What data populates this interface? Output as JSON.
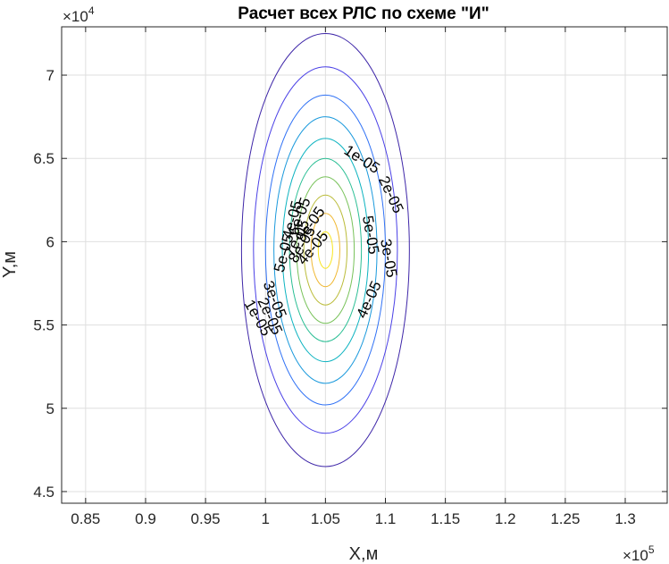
{
  "chart_data": {
    "type": "contour",
    "title": "Расчет всех РЛС по схеме \"И\"",
    "xlabel": "X,м",
    "ylabel": "Y,м",
    "xlim": [
      83000,
      133500
    ],
    "ylim": [
      44300,
      72900
    ],
    "x_ticks": [
      85000,
      90000,
      95000,
      100000,
      105000,
      110000,
      115000,
      120000,
      125000,
      130000
    ],
    "x_tick_labels": [
      "0.85",
      "0.9",
      "0.95",
      "1",
      "1.05",
      "1.1",
      "1.15",
      "1.2",
      "1.25",
      "1.3"
    ],
    "y_ticks": [
      45000,
      50000,
      55000,
      60000,
      65000,
      70000
    ],
    "y_tick_labels": [
      "4.5",
      "5",
      "5.5",
      "6",
      "6.5",
      "7"
    ],
    "x_exponent": {
      "base": "×10",
      "power": "5"
    },
    "y_exponent": {
      "base": "×10",
      "power": "4"
    },
    "grid": true,
    "peak": {
      "x": 105000,
      "y": 59500
    },
    "contours": [
      {
        "level": 1e-05,
        "rx": 7000,
        "ry": 13000,
        "color": "#3e26a8"
      },
      {
        "level": 2e-05,
        "rx": 6000,
        "ry": 11000,
        "color": "#4a40e6"
      },
      {
        "level": 3e-05,
        "rx": 5000,
        "ry": 9300,
        "color": "#2f71f5"
      },
      {
        "level": 4e-05,
        "rx": 4300,
        "ry": 8000,
        "color": "#1a99dc"
      },
      {
        "level": 5e-05,
        "rx": 3600,
        "ry": 6700,
        "color": "#0cb3c0"
      },
      {
        "level": 6e-05,
        "rx": 3000,
        "ry": 5500,
        "color": "#2abe94"
      },
      {
        "level": 7e-05,
        "rx": 2400,
        "ry": 4400,
        "color": "#78c25a"
      },
      {
        "level": 8e-05,
        "rx": 1800,
        "ry": 3300,
        "color": "#bbbc3a"
      },
      {
        "level": 9e-05,
        "rx": 1200,
        "ry": 2200,
        "color": "#f0b832"
      },
      {
        "level": 0.0001,
        "rx": 600,
        "ry": 1100,
        "color": "#f9e51e"
      }
    ],
    "contour_labels": [
      {
        "text": "1e-05",
        "x": 108000,
        "y": 64900,
        "angle": 33
      },
      {
        "text": "2e-05",
        "x": 110400,
        "y": 62800,
        "angle": 65
      },
      {
        "text": "5e-05",
        "x": 108700,
        "y": 60400,
        "angle": 80
      },
      {
        "text": "3e-05",
        "x": 110200,
        "y": 59000,
        "angle": 80
      },
      {
        "text": "4e-05",
        "x": 108700,
        "y": 56500,
        "angle": -65
      },
      {
        "text": "3e-05",
        "x": 100700,
        "y": 56500,
        "angle": 68
      },
      {
        "text": "2e-05",
        "x": 100300,
        "y": 55500,
        "angle": 65
      },
      {
        "text": "1e-05",
        "x": 99300,
        "y": 55400,
        "angle": 60
      },
      {
        "text": "4e-05",
        "x": 102300,
        "y": 61300,
        "angle": -75
      },
      {
        "text": "5e-05",
        "x": 101600,
        "y": 59300,
        "angle": -75
      },
      {
        "text": "6e-05",
        "x": 102900,
        "y": 61500,
        "angle": -70
      },
      {
        "text": "7e-05",
        "x": 102700,
        "y": 60200,
        "angle": -65
      },
      {
        "text": "8e-05",
        "x": 103100,
        "y": 59800,
        "angle": -60
      },
      {
        "text": "9e-05",
        "x": 103800,
        "y": 61000,
        "angle": -55
      },
      {
        "text": "4e-05",
        "x": 104000,
        "y": 59600,
        "angle": -50
      }
    ]
  }
}
